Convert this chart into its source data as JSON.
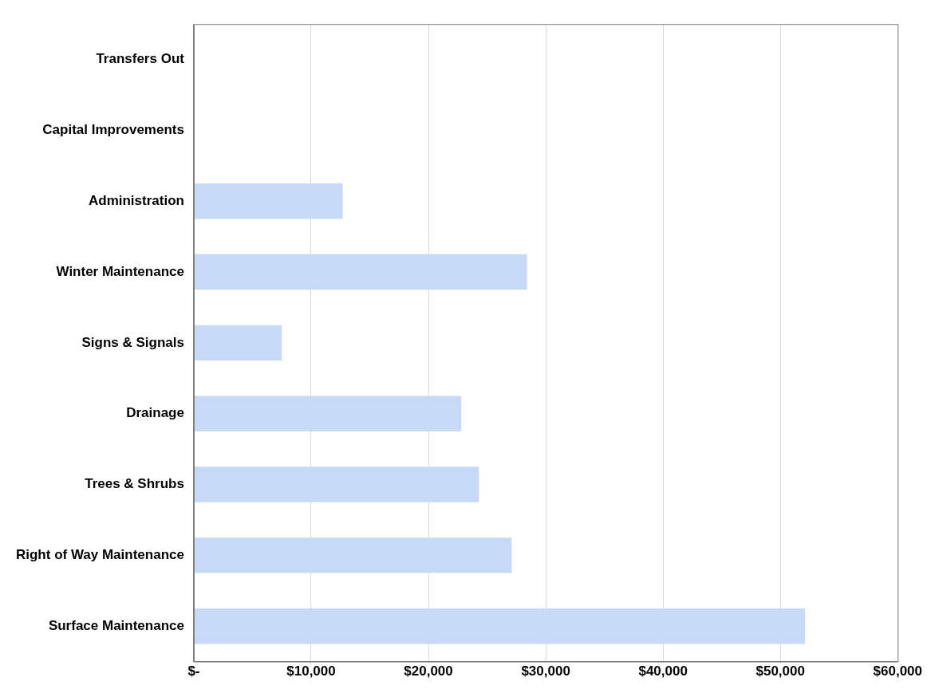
{
  "chart_data": {
    "type": "bar",
    "orientation": "horizontal",
    "categories": [
      "Transfers Out",
      "Capital Improvements",
      "Administration",
      "Winter Maintenance",
      "Signs & Signals",
      "Drainage",
      "Trees & Shrubs",
      "Right of Way Maintenance",
      "Surface Maintenance"
    ],
    "values": [
      0,
      0,
      12700,
      28400,
      7500,
      22800,
      24300,
      27100,
      52100
    ],
    "color": "#c6d9f7",
    "xlim": [
      0,
      60000
    ],
    "xticks": [
      {
        "value": 0,
        "label": "$-"
      },
      {
        "value": 10000,
        "label": "$10,000"
      },
      {
        "value": 20000,
        "label": "$20,000"
      },
      {
        "value": 30000,
        "label": "$30,000"
      },
      {
        "value": 40000,
        "label": "$40,000"
      },
      {
        "value": 50000,
        "label": "$50,000"
      },
      {
        "value": 60000,
        "label": "$60,000"
      }
    ],
    "grid": "x",
    "legend": false
  }
}
